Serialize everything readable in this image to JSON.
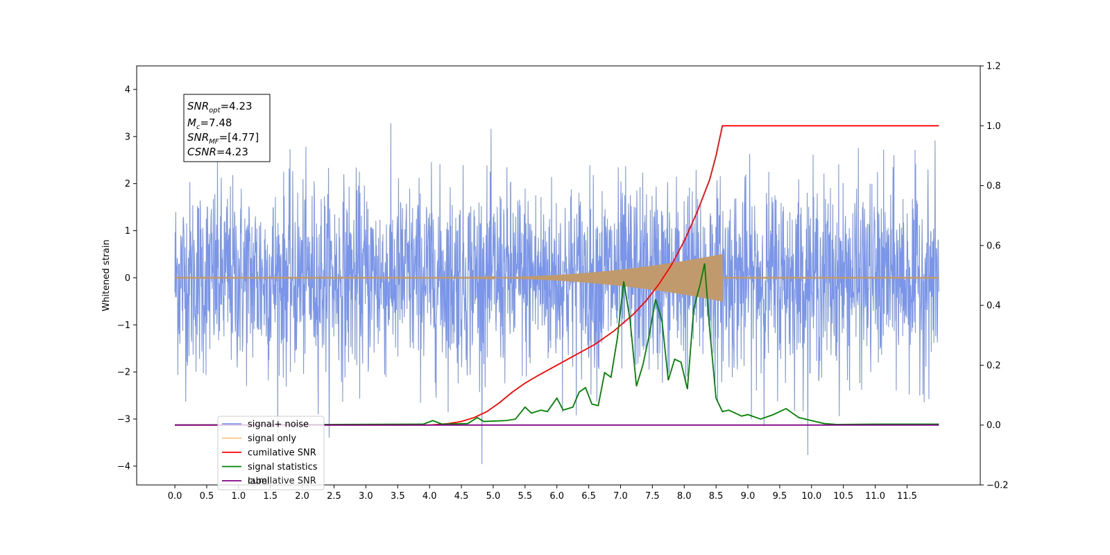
{
  "chart_data": {
    "type": "line",
    "ylabel": "Whitened strain",
    "xlim": [
      -0.6,
      12.65
    ],
    "ylim_left": [
      -4.4,
      4.5
    ],
    "ylim_right": [
      -0.2,
      1.2
    ],
    "x_ticks": [
      "0.0",
      "0.5",
      "1.0",
      "1.5",
      "2.0",
      "2.5",
      "3.0",
      "3.5",
      "4.0",
      "4.5",
      "5.0",
      "5.5",
      "6.0",
      "6.5",
      "7.0",
      "7.5",
      "8.0",
      "8.5",
      "9.0",
      "9.5",
      "10.0",
      "10.5",
      "11.0",
      "11.5"
    ],
    "y_ticks_left": [
      "4",
      "3",
      "2",
      "1",
      "0",
      "−1",
      "−2",
      "−3",
      "−4"
    ],
    "y_ticks_right": [
      "1.2",
      "1.0",
      "0.8",
      "0.6",
      "0.4",
      "0.2",
      "0.0",
      "−0.2"
    ],
    "grid": false,
    "legend_position": "lower-left",
    "annotation": {
      "snr_opt": {
        "base": "SNR",
        "sub": "opt",
        "value": "=4.23"
      },
      "mc": {
        "base": "M",
        "sub": "c",
        "value": "=7.48"
      },
      "snr_mf": {
        "base": "SNR",
        "sub": "MF",
        "value": "=[4.77]"
      },
      "csnr": {
        "base": "CSNR",
        "value": "=4.23"
      }
    },
    "series": [
      {
        "name": "signal+ noise",
        "color": "#7b96e8",
        "axis": "left",
        "x_range": [
          0.0,
          12.0
        ],
        "amplitude_std": 1.0,
        "kind": "noise"
      },
      {
        "name": "signal only",
        "color": "#f6c47a",
        "axis": "left",
        "chirp": {
          "t_start": 0.0,
          "t_merger": 8.6,
          "t_end": 12.0,
          "peak_amplitude": 0.5
        }
      },
      {
        "name": "cumilative SNR",
        "color": "#ff0000",
        "axis": "right",
        "x": [
          0.0,
          4.0,
          4.3,
          4.5,
          4.7,
          4.9,
          5.1,
          5.3,
          5.5,
          5.7,
          6.0,
          6.3,
          6.6,
          6.9,
          7.2,
          7.4,
          7.6,
          7.8,
          8.0,
          8.2,
          8.4,
          8.5,
          8.6,
          9.0,
          10.0,
          11.0,
          12.0
        ],
        "y": [
          0.0,
          0.0,
          0.005,
          0.012,
          0.025,
          0.045,
          0.075,
          0.11,
          0.14,
          0.165,
          0.2,
          0.235,
          0.27,
          0.315,
          0.37,
          0.415,
          0.47,
          0.535,
          0.615,
          0.71,
          0.82,
          0.9,
          1.0,
          1.0,
          1.0,
          1.0,
          1.0
        ]
      },
      {
        "name": "signal statistics",
        "color": "#008000",
        "axis": "right",
        "x": [
          0.0,
          3.9,
          4.05,
          4.2,
          4.6,
          4.75,
          4.85,
          5.2,
          5.35,
          5.5,
          5.6,
          5.75,
          5.85,
          6.0,
          6.1,
          6.25,
          6.35,
          6.45,
          6.55,
          6.65,
          6.75,
          6.85,
          6.95,
          7.05,
          7.15,
          7.25,
          7.35,
          7.45,
          7.55,
          7.65,
          7.75,
          7.85,
          7.95,
          8.05,
          8.15,
          8.25,
          8.32,
          8.4,
          8.5,
          8.6,
          8.7,
          8.8,
          8.9,
          9.0,
          9.2,
          9.4,
          9.6,
          9.7,
          9.8,
          10.0,
          10.2,
          10.4,
          11.0,
          12.0
        ],
        "y": [
          0.0,
          0.003,
          0.015,
          0.003,
          0.005,
          0.025,
          0.012,
          0.015,
          0.02,
          0.06,
          0.04,
          0.05,
          0.045,
          0.09,
          0.05,
          0.06,
          0.11,
          0.125,
          0.07,
          0.065,
          0.175,
          0.16,
          0.29,
          0.48,
          0.35,
          0.13,
          0.2,
          0.3,
          0.42,
          0.35,
          0.15,
          0.22,
          0.21,
          0.12,
          0.39,
          0.47,
          0.54,
          0.32,
          0.09,
          0.045,
          0.05,
          0.04,
          0.03,
          0.035,
          0.02,
          0.035,
          0.055,
          0.04,
          0.025,
          0.015,
          0.005,
          0.002,
          0.003,
          0.003
        ]
      },
      {
        "name": "label",
        "color": "#800080",
        "axis": "right",
        "x": [
          0.0,
          12.0
        ],
        "y": [
          0.0,
          0.0
        ]
      }
    ],
    "legend_overlap_text": "cumilative SNR"
  }
}
